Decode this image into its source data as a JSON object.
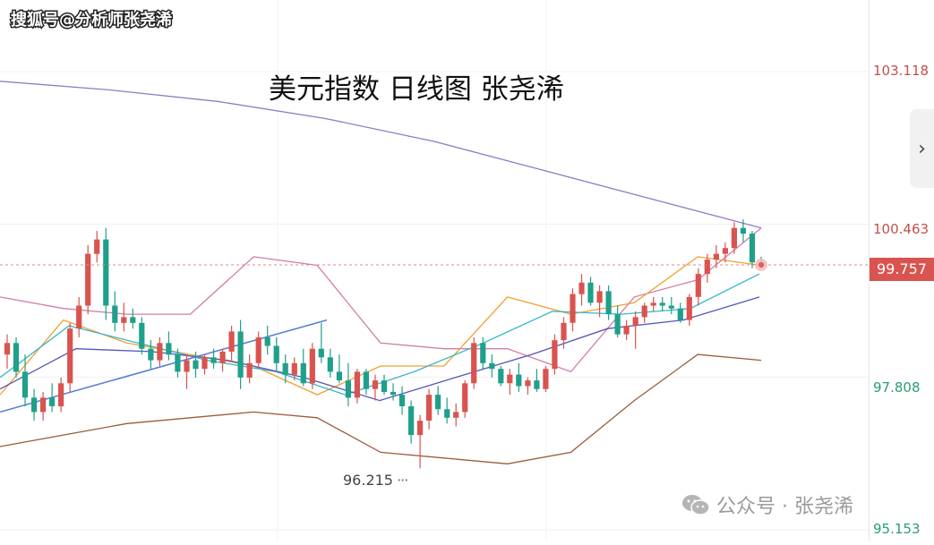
{
  "watermark": "搜狐号@分析师张尧浠",
  "chart_data": {
    "type": "candlestick",
    "title": "美元指数 日线图 张尧浠",
    "y_axis_labels": [
      "103.118",
      "100.463",
      "97.808",
      "95.153"
    ],
    "y_axis_label_colors": [
      "#c0504d",
      "#c0504d",
      "#2a9d6f",
      "#2a9d6f"
    ],
    "current_price": "99.757",
    "low_annotation": "96.215",
    "candles": [
      [
        98.2,
        98.55,
        97.95,
        98.4
      ],
      [
        98.4,
        98.5,
        97.8,
        97.9
      ],
      [
        97.9,
        98.2,
        97.3,
        97.45
      ],
      [
        97.45,
        97.6,
        97.05,
        97.2
      ],
      [
        97.2,
        97.55,
        97.05,
        97.45
      ],
      [
        97.45,
        97.7,
        97.2,
        97.3
      ],
      [
        97.3,
        97.8,
        97.2,
        97.7
      ],
      [
        97.7,
        98.75,
        97.55,
        98.65
      ],
      [
        98.65,
        99.2,
        98.5,
        99.05
      ],
      [
        99.05,
        100.1,
        98.9,
        99.95
      ],
      [
        99.95,
        100.35,
        99.8,
        100.2
      ],
      [
        100.2,
        100.4,
        98.8,
        99.05
      ],
      [
        99.05,
        99.3,
        98.6,
        98.75
      ],
      [
        98.75,
        99.1,
        98.6,
        98.85
      ],
      [
        98.85,
        99.0,
        98.65,
        98.75
      ],
      [
        98.75,
        98.85,
        98.2,
        98.3
      ],
      [
        98.3,
        98.45,
        97.95,
        98.1
      ],
      [
        98.1,
        98.5,
        98.0,
        98.4
      ],
      [
        98.4,
        98.6,
        98.1,
        98.2
      ],
      [
        98.2,
        98.3,
        97.8,
        97.9
      ],
      [
        97.9,
        98.2,
        97.6,
        98.1
      ],
      [
        98.1,
        98.25,
        97.8,
        97.95
      ],
      [
        97.95,
        98.2,
        97.85,
        98.15
      ],
      [
        98.15,
        98.3,
        97.95,
        98.05
      ],
      [
        98.05,
        98.3,
        97.9,
        98.25
      ],
      [
        98.25,
        98.7,
        98.1,
        98.6
      ],
      [
        98.6,
        98.8,
        97.6,
        97.8
      ],
      [
        97.8,
        98.2,
        97.7,
        98.05
      ],
      [
        98.05,
        98.6,
        97.95,
        98.5
      ],
      [
        98.5,
        98.7,
        98.2,
        98.35
      ],
      [
        98.35,
        98.5,
        97.9,
        98.05
      ],
      [
        98.05,
        98.2,
        97.7,
        97.85
      ],
      [
        97.85,
        98.15,
        97.75,
        98.05
      ],
      [
        98.05,
        98.3,
        97.65,
        97.7
      ],
      [
        97.7,
        98.4,
        97.6,
        98.3
      ],
      [
        98.3,
        98.75,
        98.05,
        98.15
      ],
      [
        98.15,
        98.3,
        97.8,
        97.9
      ],
      [
        97.9,
        98.2,
        97.7,
        97.75
      ],
      [
        97.75,
        98.05,
        97.3,
        97.45
      ],
      [
        97.45,
        97.95,
        97.35,
        97.9
      ],
      [
        97.9,
        97.95,
        97.5,
        97.6
      ],
      [
        97.6,
        97.85,
        97.4,
        97.75
      ],
      [
        97.75,
        97.85,
        97.5,
        97.55
      ],
      [
        97.55,
        97.7,
        97.4,
        97.5
      ],
      [
        97.5,
        97.65,
        97.15,
        97.3
      ],
      [
        97.3,
        97.4,
        96.65,
        96.8
      ],
      [
        96.8,
        97.15,
        96.22,
        97.05
      ],
      [
        97.05,
        97.6,
        96.9,
        97.5
      ],
      [
        97.5,
        97.65,
        97.15,
        97.25
      ],
      [
        97.25,
        97.45,
        97.0,
        97.1
      ],
      [
        97.1,
        97.35,
        96.95,
        97.2
      ],
      [
        97.2,
        97.75,
        97.1,
        97.7
      ],
      [
        97.7,
        98.5,
        97.6,
        98.4
      ],
      [
        98.4,
        98.5,
        97.95,
        98.05
      ],
      [
        98.05,
        98.2,
        97.8,
        97.95
      ],
      [
        97.95,
        98.0,
        97.65,
        97.7
      ],
      [
        97.7,
        97.95,
        97.5,
        97.85
      ],
      [
        97.85,
        98.05,
        97.55,
        97.65
      ],
      [
        97.65,
        97.8,
        97.5,
        97.75
      ],
      [
        97.75,
        97.95,
        97.55,
        97.6
      ],
      [
        97.6,
        98.0,
        97.55,
        97.95
      ],
      [
        97.95,
        98.55,
        97.85,
        98.45
      ],
      [
        98.45,
        98.85,
        98.3,
        98.75
      ],
      [
        98.75,
        99.35,
        98.6,
        99.25
      ],
      [
        99.25,
        99.6,
        99.05,
        99.45
      ],
      [
        99.45,
        99.55,
        99.05,
        99.1
      ],
      [
        99.1,
        99.4,
        98.85,
        99.3
      ],
      [
        99.3,
        99.4,
        98.8,
        98.9
      ],
      [
        98.9,
        99.05,
        98.5,
        98.55
      ],
      [
        98.55,
        98.8,
        98.45,
        98.7
      ],
      [
        98.7,
        98.95,
        98.3,
        98.85
      ],
      [
        98.85,
        99.1,
        98.75,
        99.05
      ],
      [
        99.05,
        99.2,
        98.95,
        99.1
      ],
      [
        99.1,
        99.2,
        98.95,
        99.05
      ],
      [
        99.05,
        99.2,
        98.9,
        99.0
      ],
      [
        99.0,
        99.1,
        98.75,
        98.8
      ],
      [
        98.8,
        99.25,
        98.7,
        99.2
      ],
      [
        99.2,
        99.7,
        99.05,
        99.6
      ],
      [
        99.6,
        99.95,
        99.45,
        99.85
      ],
      [
        99.85,
        100.1,
        99.7,
        99.95
      ],
      [
        99.95,
        100.15,
        99.8,
        100.05
      ],
      [
        100.05,
        100.5,
        99.95,
        100.4
      ],
      [
        100.4,
        100.55,
        100.15,
        100.3
      ],
      [
        100.3,
        100.35,
        99.7,
        99.8
      ],
      [
        99.8,
        99.9,
        99.7,
        99.757
      ]
    ],
    "overlay_lines": [
      {
        "color": "#8e7cc3",
        "values": [
          102.95,
          102.8,
          102.6,
          102.3,
          101.9,
          101.4,
          100.9,
          100.4
        ]
      },
      {
        "color": "#d27ca8",
        "values": [
          99.2,
          99.0,
          98.9,
          98.9,
          99.9,
          99.75,
          98.4,
          98.3,
          98.3,
          97.9,
          99.2,
          99.5,
          100.4
        ]
      },
      {
        "color": "#9c5b3a",
        "values": [
          96.6,
          96.8,
          97.0,
          97.1,
          97.2,
          97.1,
          96.5,
          96.4,
          96.3,
          96.5,
          97.4,
          98.2,
          98.1
        ]
      },
      {
        "color": "#f0a030",
        "values": [
          97.5,
          98.8,
          98.4,
          98.2,
          98.0,
          97.5,
          98.0,
          98.0,
          99.2,
          98.9,
          99.1,
          99.9,
          99.75
        ]
      },
      {
        "color": "#35b7c7",
        "values": [
          97.8,
          98.7,
          98.4,
          98.1,
          97.9,
          97.5,
          97.9,
          98.4,
          98.95,
          98.9,
          99.0,
          99.6
        ]
      },
      {
        "color": "#5555bb",
        "values": [
          97.6,
          98.3,
          98.25,
          98.1,
          97.8,
          97.4,
          97.8,
          98.2,
          98.65,
          98.8,
          99.2
        ]
      },
      {
        "color": "#5b7fd6",
        "values": [
          97.2,
          98.8
        ]
      }
    ]
  },
  "footer_brand": {
    "text": "公众号 · 张尧浠"
  },
  "nav_button": {
    "icon": "chevron-right-icon",
    "label": "›"
  }
}
